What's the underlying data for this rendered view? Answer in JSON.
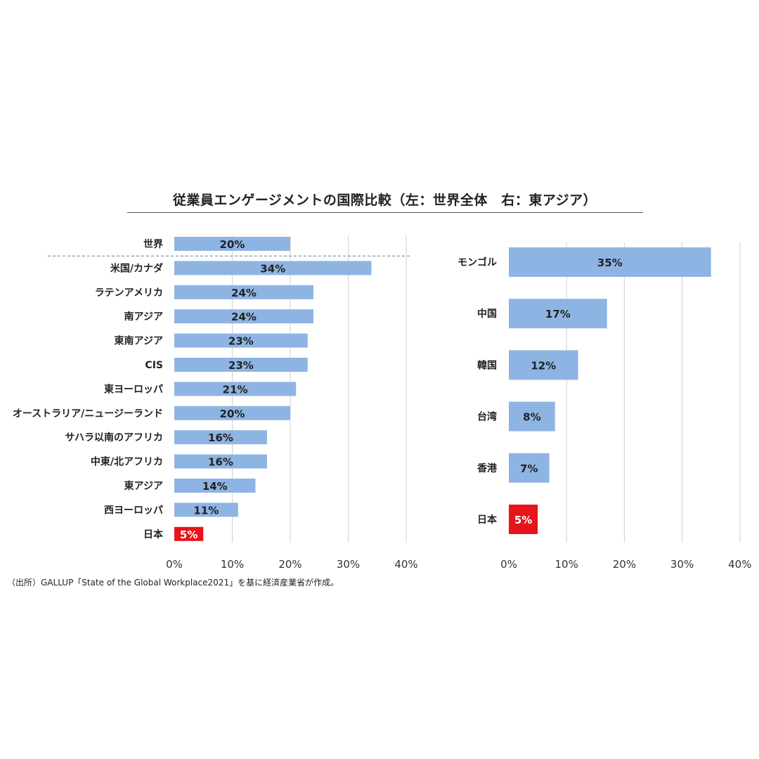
{
  "title": "従業員エンゲージメントの国際比較（左：世界全体　右：東アジア）",
  "source": "（出所）GALLUP「State of the Global Workplace2021」を基に経済産業省が作成。",
  "colors": {
    "bar": "#8eb4e3",
    "highlight": "#e8141b"
  },
  "chart_data": [
    {
      "type": "bar",
      "orientation": "horizontal",
      "categories": [
        "世界",
        "米国/カナダ",
        "ラテンアメリカ",
        "南アジア",
        "東南アジア",
        "CIS",
        "東ヨーロッパ",
        "オーストラリア/ニュージーランド",
        "サハラ以南のアフリカ",
        "中東/北アフリカ",
        "東アジア",
        "西ヨーロッパ",
        "日本"
      ],
      "values": [
        20,
        34,
        24,
        24,
        23,
        23,
        21,
        20,
        16,
        16,
        14,
        11,
        5
      ],
      "data_labels": [
        "20%",
        "34%",
        "24%",
        "24%",
        "23%",
        "23%",
        "21%",
        "20%",
        "16%",
        "16%",
        "14%",
        "11%",
        "5%"
      ],
      "highlight": "日本",
      "xlim": [
        0,
        40
      ],
      "x_ticks": [
        "0%",
        "10%",
        "20%",
        "30%",
        "40%"
      ],
      "grid": true,
      "separator_after": "世界"
    },
    {
      "type": "bar",
      "orientation": "horizontal",
      "categories": [
        "モンゴル",
        "中国",
        "韓国",
        "台湾",
        "香港",
        "日本"
      ],
      "values": [
        35,
        17,
        12,
        8,
        7,
        5
      ],
      "data_labels": [
        "35%",
        "17%",
        "12%",
        "8%",
        "7%",
        "5%"
      ],
      "highlight": "日本",
      "xlim": [
        0,
        40
      ],
      "x_ticks": [
        "0%",
        "10%",
        "20%",
        "30%",
        "40%"
      ],
      "grid": true
    }
  ]
}
